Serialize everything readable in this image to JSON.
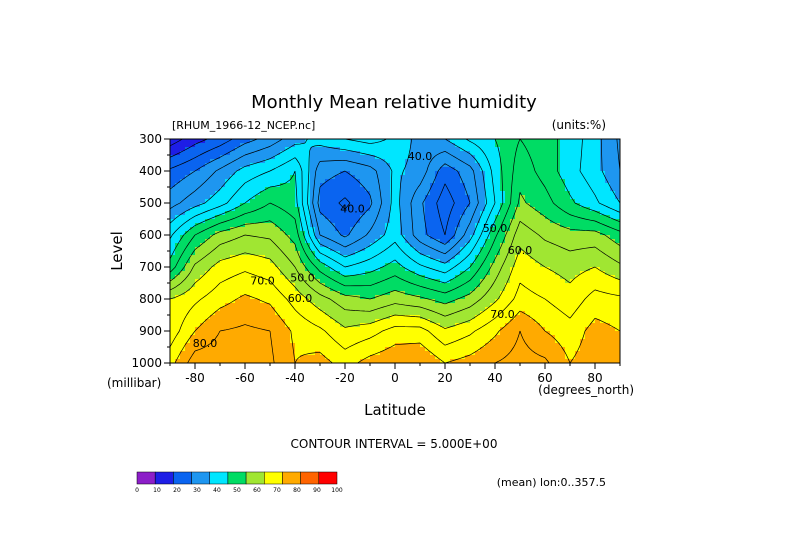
{
  "chart_data": {
    "type": "heatmap",
    "title": "Monthly Mean relative humidity",
    "dataset_label": "[RHUM_1966-12_NCEP.nc]",
    "units_label": "(units:%)",
    "xlabel": "Latitude",
    "x_units": "(degrees_north)",
    "ylabel": "Level",
    "y_units": "(millibar)",
    "x_ticks": [
      -80,
      -60,
      -40,
      -20,
      0,
      20,
      40,
      60,
      80
    ],
    "y_ticks": [
      300,
      400,
      500,
      600,
      700,
      800,
      900,
      1000
    ],
    "xlim": [
      -90,
      90
    ],
    "ylim": [
      1000,
      300
    ],
    "contour_interval_text": "CONTOUR INTERVAL = 5.000E+00",
    "mean_text": "(mean) lon:0..357.5",
    "contour_labels": [
      {
        "text": "40.0",
        "lat": 10,
        "lev": 365
      },
      {
        "text": "40.0",
        "lat": -17,
        "lev": 530
      },
      {
        "text": "50.0",
        "lat": 40,
        "lev": 590
      },
      {
        "text": "60.0",
        "lat": 50,
        "lev": 660
      },
      {
        "text": "50.0",
        "lat": -37,
        "lev": 745
      },
      {
        "text": "70.0",
        "lat": -53,
        "lev": 755
      },
      {
        "text": "60.0",
        "lat": -38,
        "lev": 810
      },
      {
        "text": "70.0",
        "lat": 43,
        "lev": 860
      },
      {
        "text": "80.0",
        "lat": -76,
        "lev": 950
      }
    ],
    "colorbar": {
      "levels": [
        0,
        10,
        20,
        30,
        40,
        50,
        60,
        70,
        80,
        90,
        100
      ],
      "colors": [
        "#8c1ec8",
        "#1e1ee6",
        "#0a64f0",
        "#1e96f0",
        "#00e6ff",
        "#00dc64",
        "#a0e632",
        "#ffff00",
        "#ffaa00",
        "#ff6400",
        "#ff0000"
      ]
    },
    "latitudes": [
      -90,
      -80,
      -70,
      -60,
      -50,
      -40,
      -30,
      -20,
      -10,
      0,
      10,
      20,
      30,
      40,
      50,
      60,
      70,
      80,
      90
    ],
    "levels": [
      300,
      400,
      500,
      600,
      700,
      800,
      900,
      1000
    ],
    "values": [
      [
        12,
        18,
        22,
        28,
        32,
        38,
        42,
        45,
        47,
        44,
        38,
        40,
        46,
        50,
        55,
        52,
        48,
        42,
        34
      ],
      [
        26,
        30,
        36,
        42,
        45,
        50,
        32,
        30,
        33,
        41,
        38,
        27,
        33,
        47,
        58,
        53,
        47,
        42,
        35
      ],
      [
        33,
        38,
        43,
        50,
        55,
        52,
        28,
        24,
        29,
        42,
        31,
        22,
        30,
        45,
        61,
        57,
        51,
        46,
        40
      ],
      [
        44,
        55,
        62,
        65,
        64,
        58,
        35,
        29,
        36,
        43,
        32,
        25,
        38,
        54,
        68,
        64,
        62,
        62,
        57
      ],
      [
        52,
        66,
        72,
        74,
        72,
        65,
        53,
        45,
        48,
        52,
        46,
        42,
        50,
        62,
        73,
        70,
        68,
        70,
        66
      ],
      [
        70,
        74,
        78,
        81,
        79,
        73,
        67,
        62,
        60,
        63,
        61,
        58,
        62,
        69,
        77,
        75,
        72,
        77,
        76
      ],
      [
        72,
        80,
        85,
        86,
        85,
        79,
        76,
        71,
        73,
        77,
        77,
        71,
        74,
        79,
        85,
        80,
        77,
        82,
        80
      ],
      [
        78,
        88,
        88,
        90,
        86,
        80,
        82,
        78,
        82,
        84,
        85,
        80,
        82,
        85,
        87,
        86,
        80,
        83,
        82
      ]
    ]
  }
}
